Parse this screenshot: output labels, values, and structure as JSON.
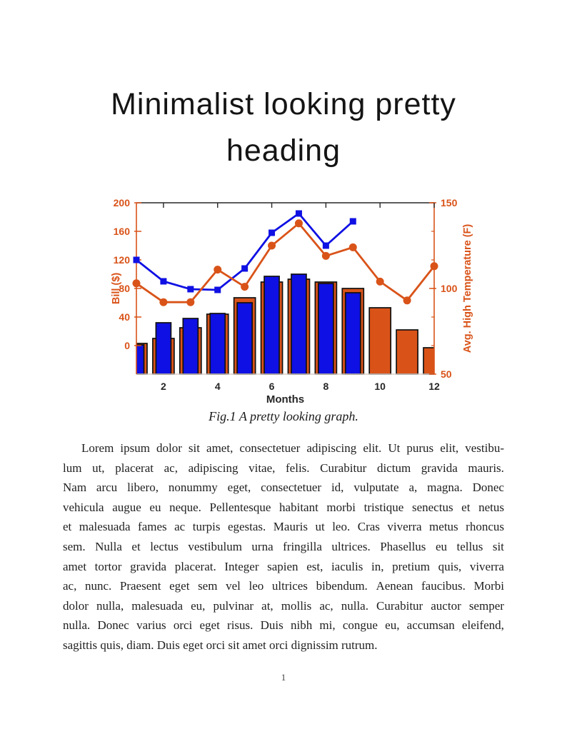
{
  "page": {
    "title_lines": [
      "Minimalist looking pretty",
      "heading"
    ],
    "figure_caption": "Fig.1 A pretty looking graph.",
    "body_lines": [
      "Lorem ipsum dolor sit amet, consectetuer adipiscing elit. Ut purus elit, vestibu-",
      "lum ut, placerat ac, adipiscing vitae, felis. Curabitur dictum gravida mauris.",
      "Nam arcu libero, nonummy eget, consectetuer id, vulputate a, magna. Donec",
      "vehicula augue eu neque. Pellentesque habitant morbi tristique senectus et netus",
      "et malesuada fames ac turpis egestas. Mauris ut leo. Cras viverra metus rhoncus",
      "sem. Nulla et lectus vestibulum urna fringilla ultrices. Phasellus eu tellus sit",
      "amet tortor gravida placerat. Integer sapien est, iaculis in, pretium quis, viverra",
      "ac, nunc. Praesent eget sem vel leo ultrices bibendum. Aenean faucibus. Morbi",
      "dolor nulla, malesuada eu, pulvinar at, mollis ac, nulla. Curabitur auctor semper",
      "nulla. Donec varius orci eget risus. Duis nibh mi, congue eu, accumsan eleifend,",
      "sagittis quis, diam. Duis eget orci sit amet orci dignissim rutrum."
    ],
    "page_number": "1"
  },
  "chart_data": {
    "type": "bar",
    "subtype": "combo-bar-line-dual-axis",
    "xlabel": "Months",
    "x_ticks": [
      2,
      4,
      6,
      8,
      10,
      12
    ],
    "x_range": [
      1,
      12
    ],
    "left_axis": {
      "label": "Bill ($)",
      "lim": [
        -40,
        200
      ],
      "ticks": [
        0,
        40,
        80,
        120,
        160,
        200
      ],
      "color": "#D95319"
    },
    "right_axis": {
      "label": "Avg. High Temperature (F)",
      "lim": [
        50,
        150
      ],
      "ticks": [
        50,
        100,
        150
      ],
      "color": "#D95319"
    },
    "x_axis_color": "#262626",
    "grid": "off",
    "legend": "none",
    "series": [
      {
        "name": "orange-bars-bill",
        "type": "bar",
        "axis": "left",
        "color": "#D95319",
        "edge_color": "#111111",
        "x": [
          1,
          2,
          3,
          4,
          5,
          6,
          7,
          8,
          9,
          10,
          11,
          12
        ],
        "values": [
          3,
          10,
          25,
          44,
          67,
          89,
          93,
          89,
          80,
          53,
          22,
          -3
        ]
      },
      {
        "name": "blue-bars-bill",
        "type": "bar",
        "axis": "left",
        "color": "#0F10E3",
        "edge_color": "#111111",
        "x": [
          1,
          2,
          3,
          4,
          5,
          6,
          7,
          8,
          9
        ],
        "values": [
          1,
          32,
          38,
          45,
          60,
          97,
          100,
          87,
          74
        ]
      },
      {
        "name": "blue-line-square-markers",
        "type": "line",
        "axis": "left",
        "marker": "square",
        "color": "#0F10E3",
        "x": [
          1,
          2,
          3,
          4,
          5,
          6,
          7,
          8,
          9
        ],
        "values": [
          120,
          90,
          79,
          78,
          108,
          158,
          185,
          140,
          174
        ]
      },
      {
        "name": "orange-line-circle-markers",
        "type": "line",
        "axis": "right",
        "marker": "circle",
        "color": "#D95319",
        "x": [
          1,
          2,
          3,
          4,
          5,
          6,
          7,
          8,
          9,
          10,
          11,
          12
        ],
        "values": [
          103,
          92,
          92,
          111,
          101,
          125,
          138,
          119,
          124,
          104,
          93,
          113
        ]
      }
    ]
  }
}
